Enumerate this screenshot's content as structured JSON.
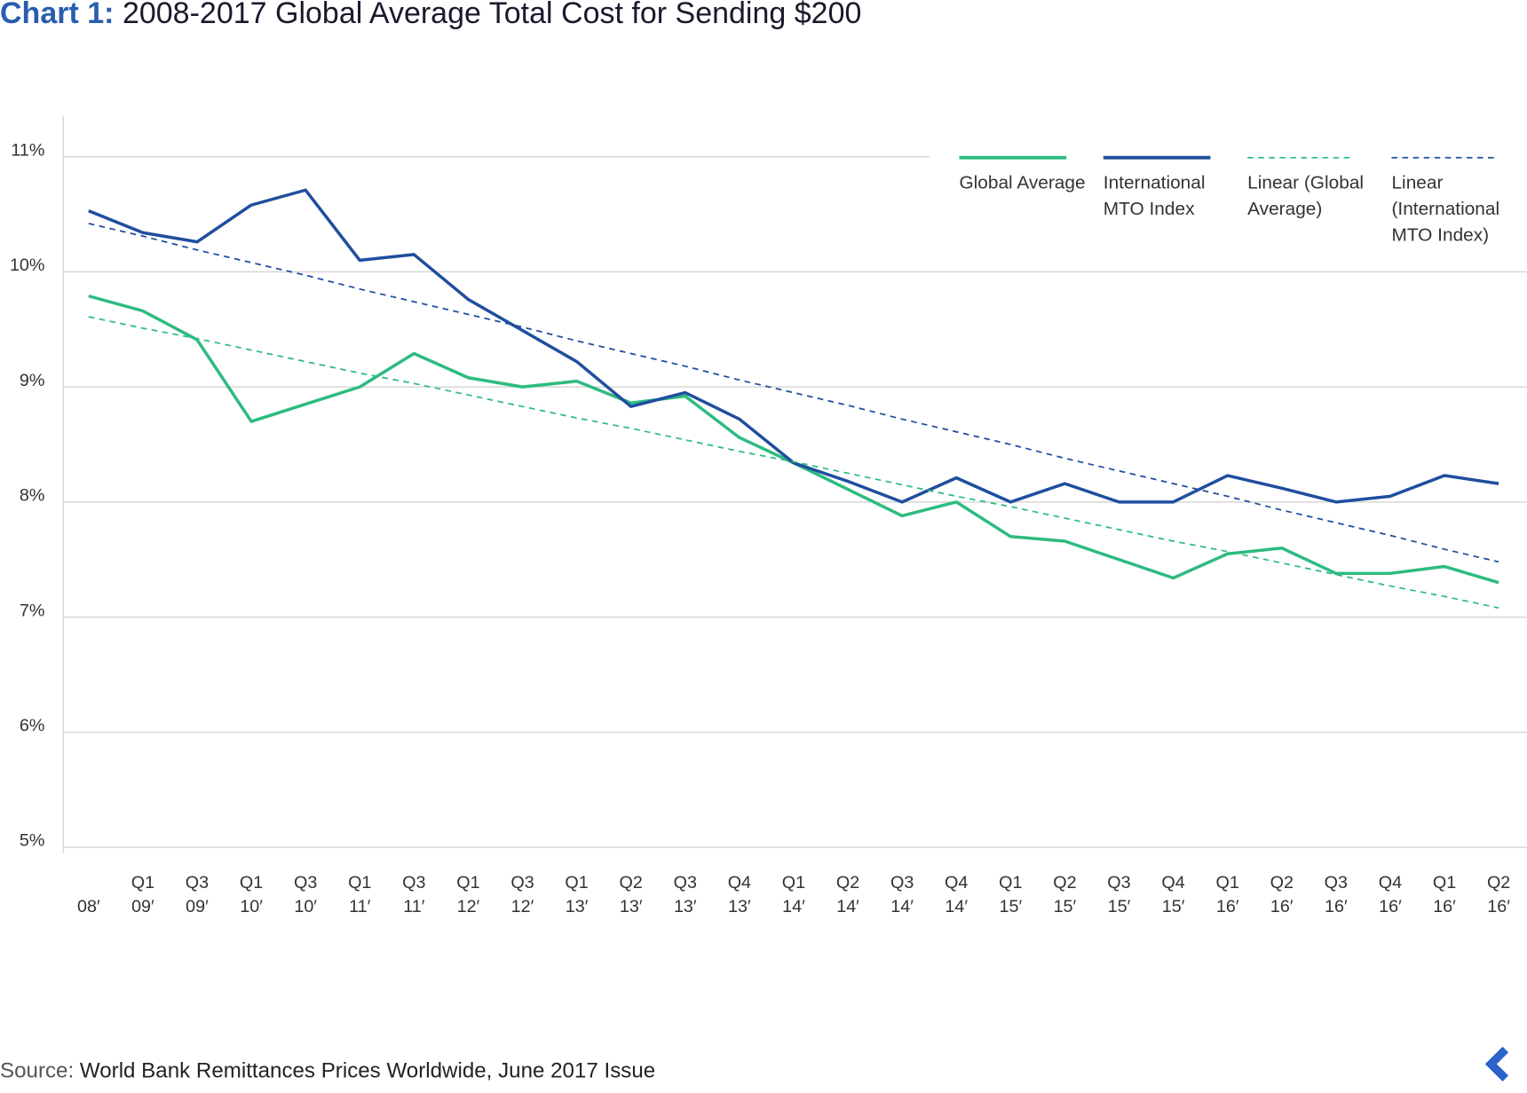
{
  "chart_data": {
    "type": "line",
    "title_label": "Chart 1:",
    "title": "2008-2017 Global Average Total Cost for Sending $200",
    "source_label": "Source:",
    "source": "World Bank Remittances Prices Worldwide, June 2017 Issue",
    "categories": [
      "08′",
      "Q1 09′",
      "Q3 09′",
      "Q1 10′",
      "Q3 10′",
      "Q1 11′",
      "Q3 11′",
      "Q1 12′",
      "Q3 12′",
      "Q1 13′",
      "Q2 13′",
      "Q3 13′",
      "Q4 13′",
      "Q1 14′",
      "Q2 14′",
      "Q3 14′",
      "Q4 14′",
      "Q1 15′",
      "Q2 15′",
      "Q3 15′",
      "Q4 15′",
      "Q1 16′",
      "Q2 16′",
      "Q3 16′",
      "Q4 16′",
      "Q1 16′",
      "Q2 16′"
    ],
    "series": [
      {
        "name": "Global Average",
        "color": "#2dbb7f",
        "style": "solid",
        "values": [
          9.79,
          9.66,
          9.41,
          8.7,
          8.85,
          9.0,
          9.29,
          9.08,
          9.0,
          9.05,
          8.86,
          8.92,
          8.56,
          8.34,
          8.11,
          7.88,
          8.0,
          7.7,
          7.66,
          7.5,
          7.34,
          7.55,
          7.6,
          7.38,
          7.38,
          7.44,
          7.3
        ]
      },
      {
        "name": "International MTO Index",
        "color": "#1f4e9e",
        "style": "solid",
        "values": [
          10.53,
          10.34,
          10.26,
          10.58,
          10.71,
          10.1,
          10.15,
          9.76,
          9.49,
          9.22,
          8.83,
          8.95,
          8.72,
          8.34,
          8.18,
          8.0,
          8.21,
          8.0,
          8.16,
          8.0,
          8.0,
          8.23,
          8.12,
          8.0,
          8.05,
          8.23,
          8.16
        ]
      },
      {
        "name": "Linear (Global Average)",
        "color": "#2dbb7f",
        "style": "dashed",
        "values": [
          9.61,
          9.51,
          9.42,
          9.32,
          9.22,
          9.12,
          9.03,
          8.93,
          8.83,
          8.73,
          8.64,
          8.54,
          8.44,
          8.35,
          8.25,
          8.15,
          8.05,
          7.96,
          7.86,
          7.76,
          7.66,
          7.57,
          7.47,
          7.37,
          7.27,
          7.18,
          7.08
        ]
      },
      {
        "name": "Linear (International MTO Index)",
        "color": "#1f4e9e",
        "style": "dashed",
        "values": [
          10.42,
          10.31,
          10.19,
          10.08,
          9.97,
          9.85,
          9.74,
          9.63,
          9.52,
          9.4,
          9.29,
          9.18,
          9.06,
          8.95,
          8.84,
          8.72,
          8.61,
          8.5,
          8.38,
          8.27,
          8.16,
          8.05,
          7.93,
          7.82,
          7.71,
          7.59,
          7.48
        ]
      }
    ],
    "ylim": [
      5,
      11
    ],
    "yticks": [
      {
        "value": 5,
        "label": "5%"
      },
      {
        "value": 6,
        "label": "6%"
      },
      {
        "value": 7,
        "label": "7%"
      },
      {
        "value": 8,
        "label": "8%"
      },
      {
        "value": 9,
        "label": "9%"
      },
      {
        "value": 10,
        "label": "10%"
      },
      {
        "value": 11,
        "label": "11%"
      }
    ],
    "grid": true,
    "legend": "top-right"
  }
}
